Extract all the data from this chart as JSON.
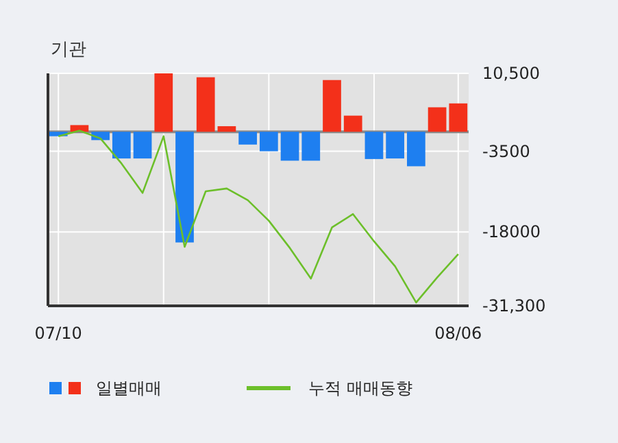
{
  "chart_data": {
    "type": "bar",
    "title": "기관",
    "categories": [
      "07/10",
      null,
      null,
      null,
      null,
      null,
      null,
      null,
      null,
      null,
      null,
      null,
      null,
      null,
      null,
      null,
      null,
      null,
      null,
      "08/06"
    ],
    "series": [
      {
        "name": "일별매매",
        "colors": [
          "#1e7ff0",
          "#f3301a",
          "#1e7ff0",
          "#1e7ff0",
          "#1e7ff0",
          "#f3301a",
          "#1e7ff0",
          "#f3301a",
          "#f3301a",
          "#1e7ff0",
          "#1e7ff0",
          "#1e7ff0",
          "#1e7ff0",
          "#f3301a",
          "#f3301a",
          "#1e7ff0",
          "#1e7ff0",
          "#1e7ff0",
          "#f3301a",
          "#f3301a"
        ],
        "values": [
          -800,
          1200,
          -1500,
          -4800,
          -4800,
          10500,
          -19900,
          9800,
          1000,
          -2300,
          -3500,
          -5200,
          -5200,
          9300,
          2900,
          -4900,
          -4800,
          -6200,
          4400,
          5100
        ]
      },
      {
        "type": "line",
        "name": "누적 매매동향",
        "color": "#6cbf2a",
        "values": [
          -800,
          200,
          -1200,
          -5700,
          -11000,
          -800,
          -20700,
          -10700,
          -10200,
          -12300,
          -16000,
          -20900,
          -26400,
          -17200,
          -14800,
          -19700,
          -24200,
          -30700,
          -26200,
          -22000
        ]
      }
    ],
    "ylim": [
      -31300,
      10500
    ],
    "yticks": [
      {
        "value": 10500,
        "label": "10,500"
      },
      -3500,
      -18000,
      {
        "value": -31300,
        "label": "-31,300"
      }
    ],
    "grid": true,
    "legend": "bottom"
  }
}
